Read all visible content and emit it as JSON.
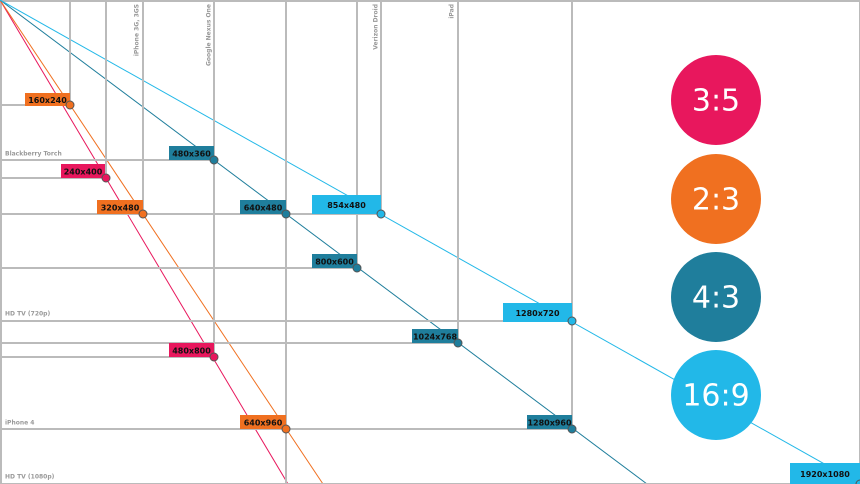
{
  "nodes": [
    {
      "label": "160x240"
    },
    {
      "label": "240x400"
    },
    {
      "label": "320x480"
    },
    {
      "label": "480x360"
    },
    {
      "label": "640x480"
    },
    {
      "label": "854x480"
    },
    {
      "label": "800x600"
    },
    {
      "label": "1280x720"
    },
    {
      "label": "1024x768"
    },
    {
      "label": "480x800"
    },
    {
      "label": "640x960"
    },
    {
      "label": "1280x960"
    },
    {
      "label": "1920x1080"
    }
  ],
  "devices": [
    "iPhone 3G, 3GS",
    "Google Nexus One",
    "Verizon Droid",
    "iPad",
    "Blackberry Torch",
    "HD TV (720p)",
    "iPhone 4",
    "HD TV (1080p)"
  ],
  "ratios": [
    "3:5",
    "2:3",
    "4:3",
    "16:9"
  ]
}
